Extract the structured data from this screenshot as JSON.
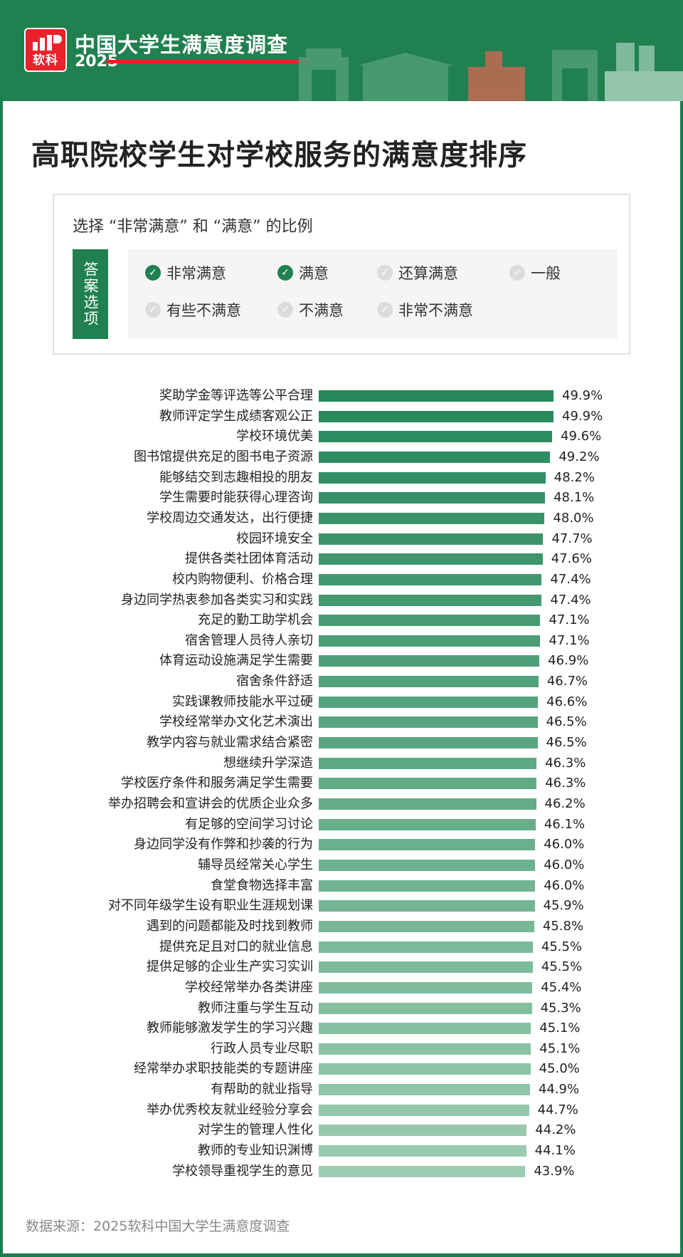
{
  "header": {
    "logo_text": "软科",
    "title": "中国大学生满意度调查",
    "year": "2025"
  },
  "colors": {
    "brand_green": "#21804f",
    "accent_red": "#e8232b",
    "bar_dark": "#26875a",
    "bar_light": "#9ccdb2"
  },
  "main_title": "高职院校学生对学校服务的满意度排序",
  "legend": {
    "subtitle": "选择 “非常满意” 和 “满意” 的比例",
    "tag": "答案选项",
    "options": [
      {
        "label": "非常满意",
        "checked": true
      },
      {
        "label": "满意",
        "checked": true
      },
      {
        "label": "还算满意",
        "checked": false
      },
      {
        "label": "一般",
        "checked": false
      },
      {
        "label": "有些不满意",
        "checked": false
      },
      {
        "label": "不满意",
        "checked": false
      },
      {
        "label": "非常不满意",
        "checked": false
      }
    ]
  },
  "chart_data": {
    "type": "bar",
    "orientation": "horizontal",
    "categories": [
      "奖助学金等评选等公平合理",
      "教师评定学生成绩客观公正",
      "学校环境优美",
      "图书馆提供充足的图书电子资源",
      "能够结交到志趣相投的朋友",
      "学生需要时能获得心理咨询",
      "学校周边交通发达，出行便捷",
      "校园环境安全",
      "提供各类社团体育活动",
      "校内购物便利、价格合理",
      "身边同学热衷参加各类实习和实践",
      "充足的勤工助学机会",
      "宿舍管理人员待人亲切",
      "体育运动设施满足学生需要",
      "宿舍条件舒适",
      "实践课教师技能水平过硬",
      "学校经常举办文化艺术演出",
      "教学内容与就业需求结合紧密",
      "想继续升学深造",
      "学校医疗条件和服务满足学生需要",
      "举办招聘会和宣讲会的优质企业众多",
      "有足够的空间学习讨论",
      "身边同学没有作弊和抄袭的行为",
      "辅导员经常关心学生",
      "食堂食物选择丰富",
      "对不同年级学生设有职业生涯规划课",
      "遇到的问题都能及时找到教师",
      "提供充足且对口的就业信息",
      "提供足够的企业生产实习实训",
      "学校经常举办各类讲座",
      "教师注重与学生互动",
      "教师能够激发学生的学习兴趣",
      "行政人员专业尽职",
      "经常举办求职技能类的专题讲座",
      "有帮助的就业指导",
      "举办优秀校友就业经验分享会",
      "对学生的管理人性化",
      "教师的专业知识渊博",
      "学校领导重视学生的意见"
    ],
    "values": [
      49.9,
      49.9,
      49.6,
      49.2,
      48.2,
      48.1,
      48.0,
      47.7,
      47.6,
      47.4,
      47.4,
      47.1,
      47.1,
      46.9,
      46.7,
      46.6,
      46.5,
      46.5,
      46.3,
      46.3,
      46.2,
      46.1,
      46.0,
      46.0,
      46.0,
      45.9,
      45.8,
      45.5,
      45.5,
      45.4,
      45.3,
      45.1,
      45.1,
      45.0,
      44.9,
      44.7,
      44.2,
      44.1,
      43.9
    ],
    "value_labels": [
      "49.9%",
      "49.9%",
      "49.6%",
      "49.2%",
      "48.2%",
      "48.1%",
      "48.0%",
      "47.7%",
      "47.6%",
      "47.4%",
      "47.4%",
      "47.1%",
      "47.1%",
      "46.9%",
      "46.7%",
      "46.6%",
      "46.5%",
      "46.5%",
      "46.3%",
      "46.3%",
      "46.2%",
      "46.1%",
      "46.0%",
      "46.0%",
      "46.0%",
      "45.9%",
      "45.8%",
      "45.5%",
      "45.5%",
      "45.4%",
      "45.3%",
      "45.1%",
      "45.1%",
      "45.0%",
      "44.9%",
      "44.7%",
      "44.2%",
      "44.1%",
      "43.9%"
    ],
    "unit": "%",
    "grid": false,
    "sort": "descending"
  },
  "source": "数据来源：2025软科中国大学生满意度调查"
}
